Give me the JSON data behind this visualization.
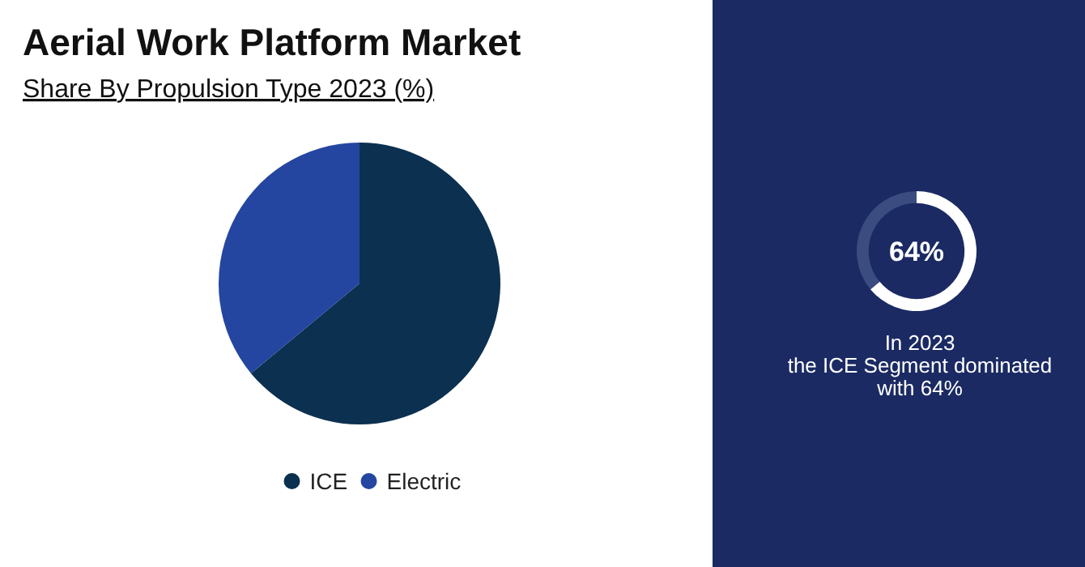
{
  "chart_data": [
    {
      "type": "pie",
      "title": "Aerial Work Platform Market",
      "subtitle": "Share By Propulsion Type 2023 (%)",
      "categories": [
        "ICE",
        "Electric"
      ],
      "values": [
        64,
        36
      ],
      "colors": [
        "#0c3050",
        "#2446a0"
      ],
      "legend": "bottom"
    },
    {
      "type": "donut",
      "categories": [
        null,
        null
      ],
      "values": [
        64,
        36
      ],
      "colors": [
        "#ffffff",
        "#3b4c80"
      ],
      "annotations": [
        "64%",
        "In 2023\nthe ICE Segment dominated\nwith 64%"
      ]
    }
  ]
}
